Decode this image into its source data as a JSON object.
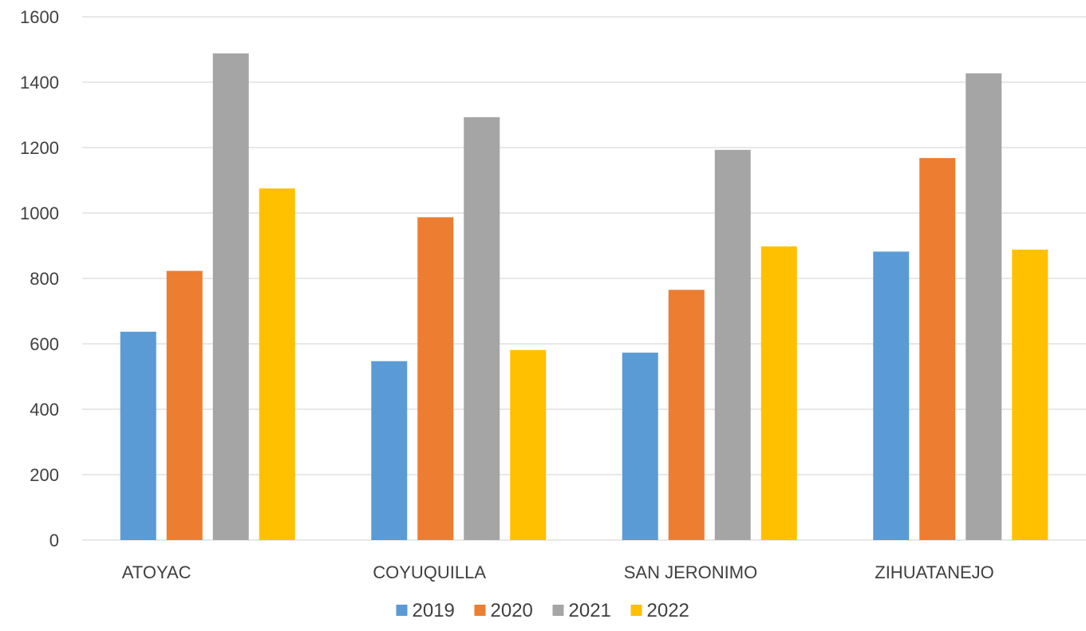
{
  "chart_data": {
    "type": "bar",
    "categories": [
      "ATOYAC",
      "COYUQUILLA",
      "SAN JERONIMO",
      "ZIHUATANEJO"
    ],
    "series": [
      {
        "name": "2019",
        "color": "#5b9bd5",
        "values": [
          637,
          547,
          573,
          882
        ]
      },
      {
        "name": "2020",
        "color": "#ed7d31",
        "values": [
          823,
          987,
          765,
          1168
        ]
      },
      {
        "name": "2021",
        "color": "#a5a5a5",
        "values": [
          1488,
          1293,
          1193,
          1427
        ]
      },
      {
        "name": "2022",
        "color": "#ffc000",
        "values": [
          1075,
          581,
          898,
          888
        ]
      }
    ],
    "ylim": [
      0,
      1600
    ],
    "yticks": [
      0,
      200,
      400,
      600,
      800,
      1000,
      1200,
      1400,
      1600
    ],
    "grid": true,
    "legend_position": "bottom"
  }
}
